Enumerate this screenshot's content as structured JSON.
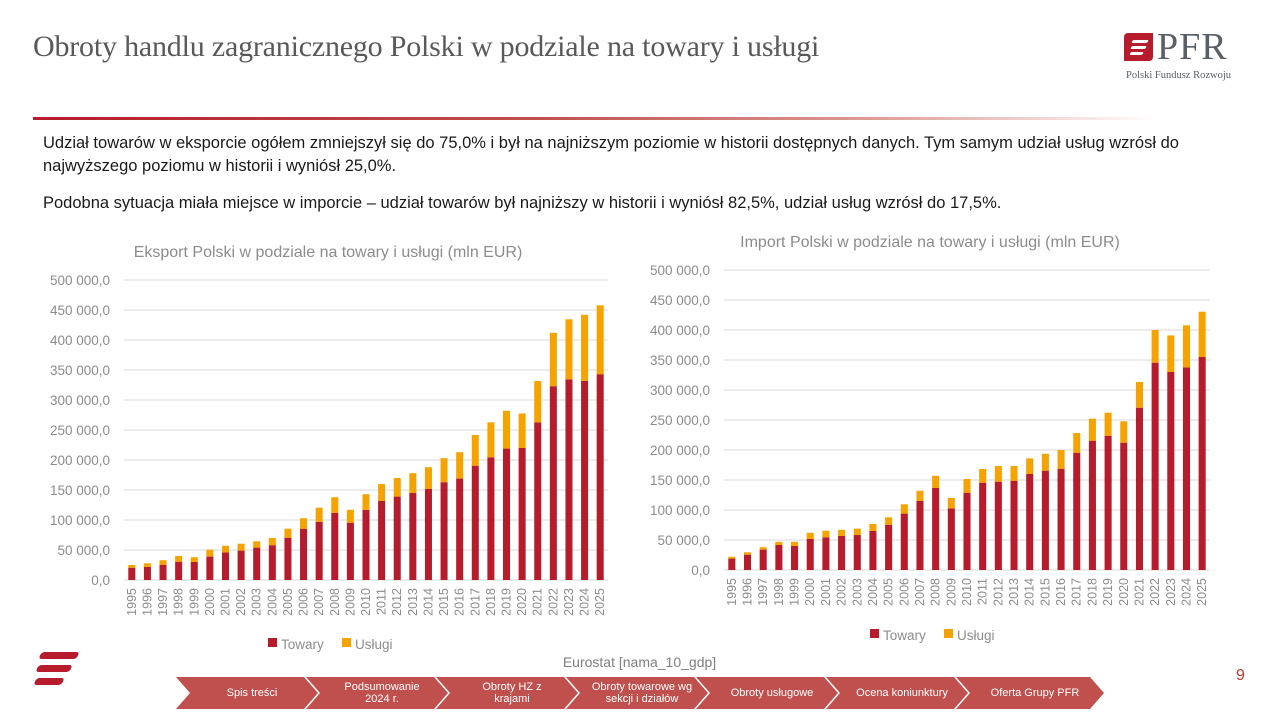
{
  "header": {
    "title": "Obroty handlu zagranicznego Polski w podziale na towary i usługi",
    "logo": {
      "brand": "PFR",
      "subtitle": "Polski Fundusz Rozwoju",
      "icon": "pfr-flag-icon"
    }
  },
  "summary": {
    "paragraph1": "Udział towarów w eksporcie ogółem zmniejszył się do 75,0% i był na najniższym poziomie w historii dostępnych danych. Tym samym udział usług wzrósł do najwyższego poziomu w historii i wyniósł 25,0%.",
    "paragraph2": "Podobna sytuacja miała miejsce w imporcie – udział towarów był najniższy w historii i wyniósł 82,5%, udział usług wzrósł do 17,5%."
  },
  "colors": {
    "towary": "#b71c2c",
    "uslugi": "#f5a300",
    "accent": "#b3192c",
    "nav": "#c0504d"
  },
  "chart_data": [
    {
      "type": "bar",
      "stacked": true,
      "title": "Eksport Polski w podziale na towary i usługi (mln EUR)",
      "xlabel": "",
      "ylabel": "",
      "ylim": [
        0,
        500000
      ],
      "yticks": [
        "0,0",
        "50 000,0",
        "100 000,0",
        "150 000,0",
        "200 000,0",
        "250 000,0",
        "300 000,0",
        "350 000,0",
        "400 000,0",
        "450 000,0",
        "500 000,0"
      ],
      "grid": true,
      "legend": "bottom",
      "categories": [
        "1995",
        "1996",
        "1997",
        "1998",
        "1999",
        "2000",
        "2001",
        "2002",
        "2003",
        "2004",
        "2005",
        "2006",
        "2007",
        "2008",
        "2009",
        "2010",
        "2011",
        "2012",
        "2013",
        "2014",
        "2015",
        "2016",
        "2017",
        "2018",
        "2019",
        "2020",
        "2021",
        "2022",
        "2023",
        "2024",
        "2025"
      ],
      "series": [
        {
          "name": "Towary",
          "values": [
            20500,
            21700,
            25500,
            30500,
            30000,
            39000,
            46000,
            49000,
            54000,
            58000,
            70500,
            85500,
            97000,
            112000,
            95500,
            117000,
            131700,
            139000,
            145000,
            152000,
            163000,
            169000,
            190500,
            204500,
            219000,
            220000,
            262800,
            323000,
            334500,
            332000,
            343000
          ]
        },
        {
          "name": "Usługi",
          "values": [
            4500,
            6100,
            7500,
            9500,
            8000,
            11500,
            11000,
            11500,
            10500,
            12000,
            15000,
            17500,
            23500,
            26000,
            21500,
            26000,
            28300,
            31000,
            33000,
            36000,
            40000,
            44000,
            51200,
            58300,
            63000,
            57500,
            68900,
            89000,
            100000,
            110000,
            114800
          ]
        }
      ]
    },
    {
      "type": "bar",
      "stacked": true,
      "title": "Import Polski w podziale na towary i usługi (mln EUR)",
      "xlabel": "",
      "ylabel": "",
      "ylim": [
        0,
        500000
      ],
      "yticks": [
        "0,0",
        "50 000,0",
        "100 000,0",
        "150 000,0",
        "200 000,0",
        "250 000,0",
        "300 000,0",
        "350 000,0",
        "400 000,0",
        "450 000,0",
        "500 000,0"
      ],
      "grid": true,
      "legend": "bottom",
      "categories": [
        "1995",
        "1996",
        "1997",
        "1998",
        "1999",
        "2000",
        "2001",
        "2002",
        "2003",
        "2004",
        "2005",
        "2006",
        "2007",
        "2008",
        "2009",
        "2010",
        "2011",
        "2012",
        "2013",
        "2014",
        "2015",
        "2016",
        "2017",
        "2018",
        "2019",
        "2020",
        "2021",
        "2022",
        "2023",
        "2024",
        "2025"
      ],
      "series": [
        {
          "name": "Towary",
          "values": [
            19000,
            25500,
            34000,
            41700,
            40000,
            51700,
            54500,
            56700,
            58300,
            65000,
            75500,
            94000,
            115000,
            136700,
            102700,
            128800,
            145500,
            147200,
            148800,
            160000,
            165500,
            168800,
            195500,
            215500,
            223800,
            212200,
            270500,
            345500,
            330000,
            337800,
            355000
          ]
        },
        {
          "name": "Usługi",
          "values": [
            3000,
            4000,
            4000,
            5300,
            7000,
            10300,
            11000,
            10300,
            10700,
            11700,
            12300,
            15500,
            17000,
            20300,
            17300,
            22900,
            22800,
            26100,
            24500,
            26000,
            28300,
            31200,
            32800,
            36700,
            38400,
            35600,
            42800,
            54500,
            61000,
            70000,
            75500
          ]
        }
      ]
    }
  ],
  "source": "Eurostat [nama_10_gdp]",
  "page_number": "9",
  "nav": {
    "items": [
      {
        "label": "Spis treści",
        "active": false
      },
      {
        "label": "Podsumowanie 2024 r.",
        "active": true
      },
      {
        "label": "Obroty HZ z krajami",
        "active": false
      },
      {
        "label": "Obroty towarowe wg sekcji i działów",
        "active": false
      },
      {
        "label": "Obroty usługowe",
        "active": false
      },
      {
        "label": "Ocena koniunktury",
        "active": false
      },
      {
        "label": "Oferta Grupy PFR",
        "active": false
      }
    ]
  }
}
